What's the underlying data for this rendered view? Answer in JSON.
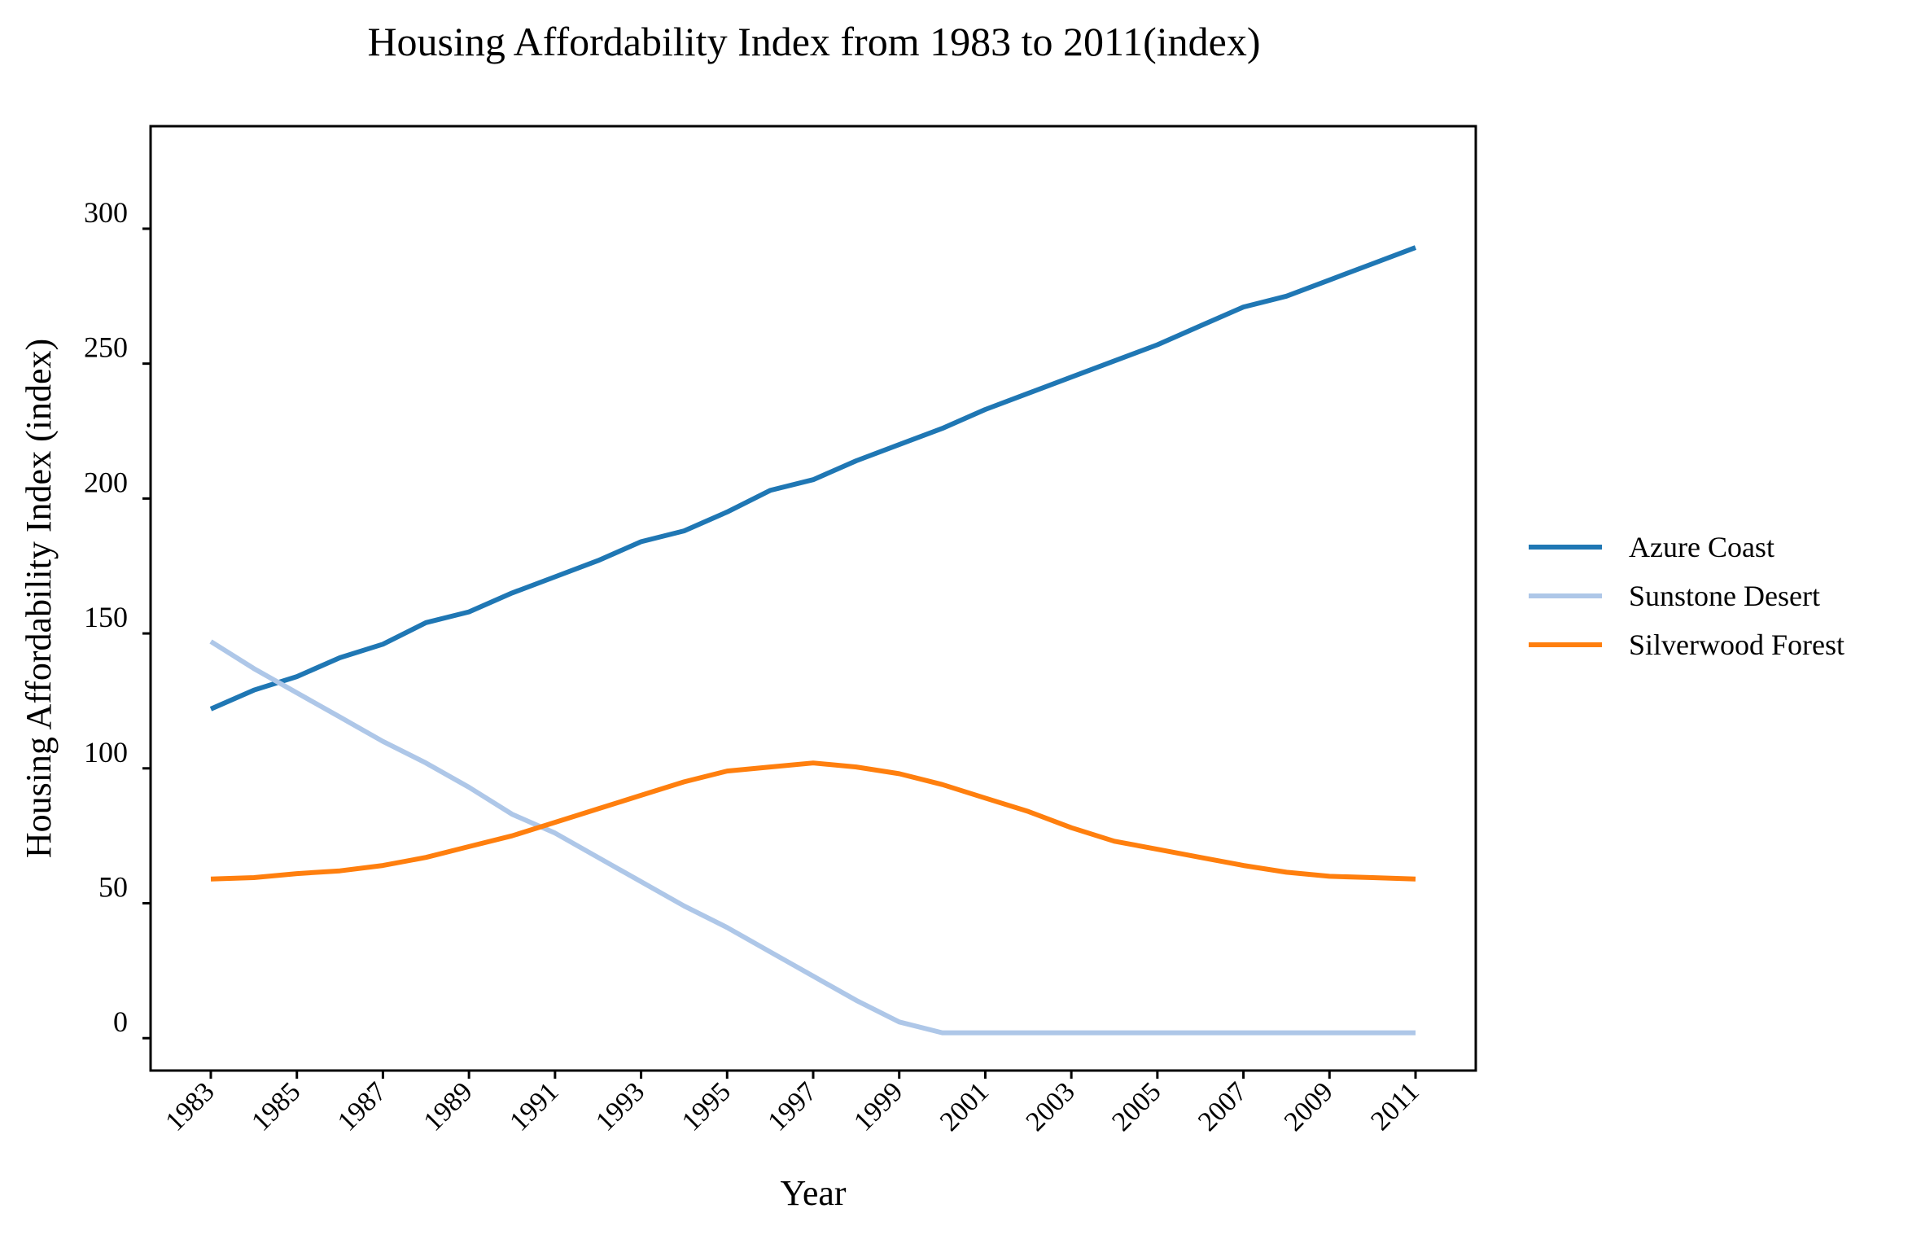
{
  "chart_data": {
    "type": "line",
    "title": "Housing Affordability Index from 1983 to 2011(index)",
    "xlabel": "Year",
    "ylabel": "Housing Affordability Index (index)",
    "x": [
      1983,
      1984,
      1985,
      1986,
      1987,
      1988,
      1989,
      1990,
      1991,
      1992,
      1993,
      1994,
      1995,
      1996,
      1997,
      1998,
      1999,
      2000,
      2001,
      2002,
      2003,
      2004,
      2005,
      2006,
      2007,
      2008,
      2009,
      2010,
      2011
    ],
    "xticks": [
      "1983",
      "1985",
      "1987",
      "1989",
      "1991",
      "1993",
      "1995",
      "1997",
      "1999",
      "2001",
      "2003",
      "2005",
      "2007",
      "2009",
      "2011"
    ],
    "yticks": [
      "0",
      "50",
      "100",
      "150",
      "200",
      "250",
      "300"
    ],
    "xlim": [
      1981.6,
      2012.4
    ],
    "ylim": [
      -12,
      338
    ],
    "grid": false,
    "legend_position": "right",
    "series": [
      {
        "name": "Azure Coast",
        "color": "#1f77b4",
        "values": [
          122,
          129,
          134,
          141,
          146,
          154,
          158,
          165,
          171,
          177,
          184,
          188,
          195,
          203,
          207,
          214,
          220,
          226,
          233,
          239,
          245,
          251,
          257,
          264,
          271,
          275,
          281,
          287,
          293
        ]
      },
      {
        "name": "Sunstone Desert",
        "color": "#aec7e8",
        "values": [
          147,
          137,
          128,
          119,
          110,
          102,
          93,
          83,
          76,
          67,
          58,
          49,
          41,
          32,
          23,
          14,
          6,
          2,
          2,
          2,
          2,
          2,
          2,
          2,
          2,
          2,
          2,
          2,
          2
        ]
      },
      {
        "name": "Silverwood Forest",
        "color": "#ff7f0e",
        "values": [
          59,
          59.5,
          61,
          62,
          64,
          67,
          71,
          75,
          80,
          85,
          90,
          95,
          99,
          100.5,
          102,
          100.5,
          98,
          94,
          89,
          84,
          78,
          73,
          70,
          67,
          64,
          61.5,
          60,
          59.5,
          59
        ]
      }
    ]
  }
}
